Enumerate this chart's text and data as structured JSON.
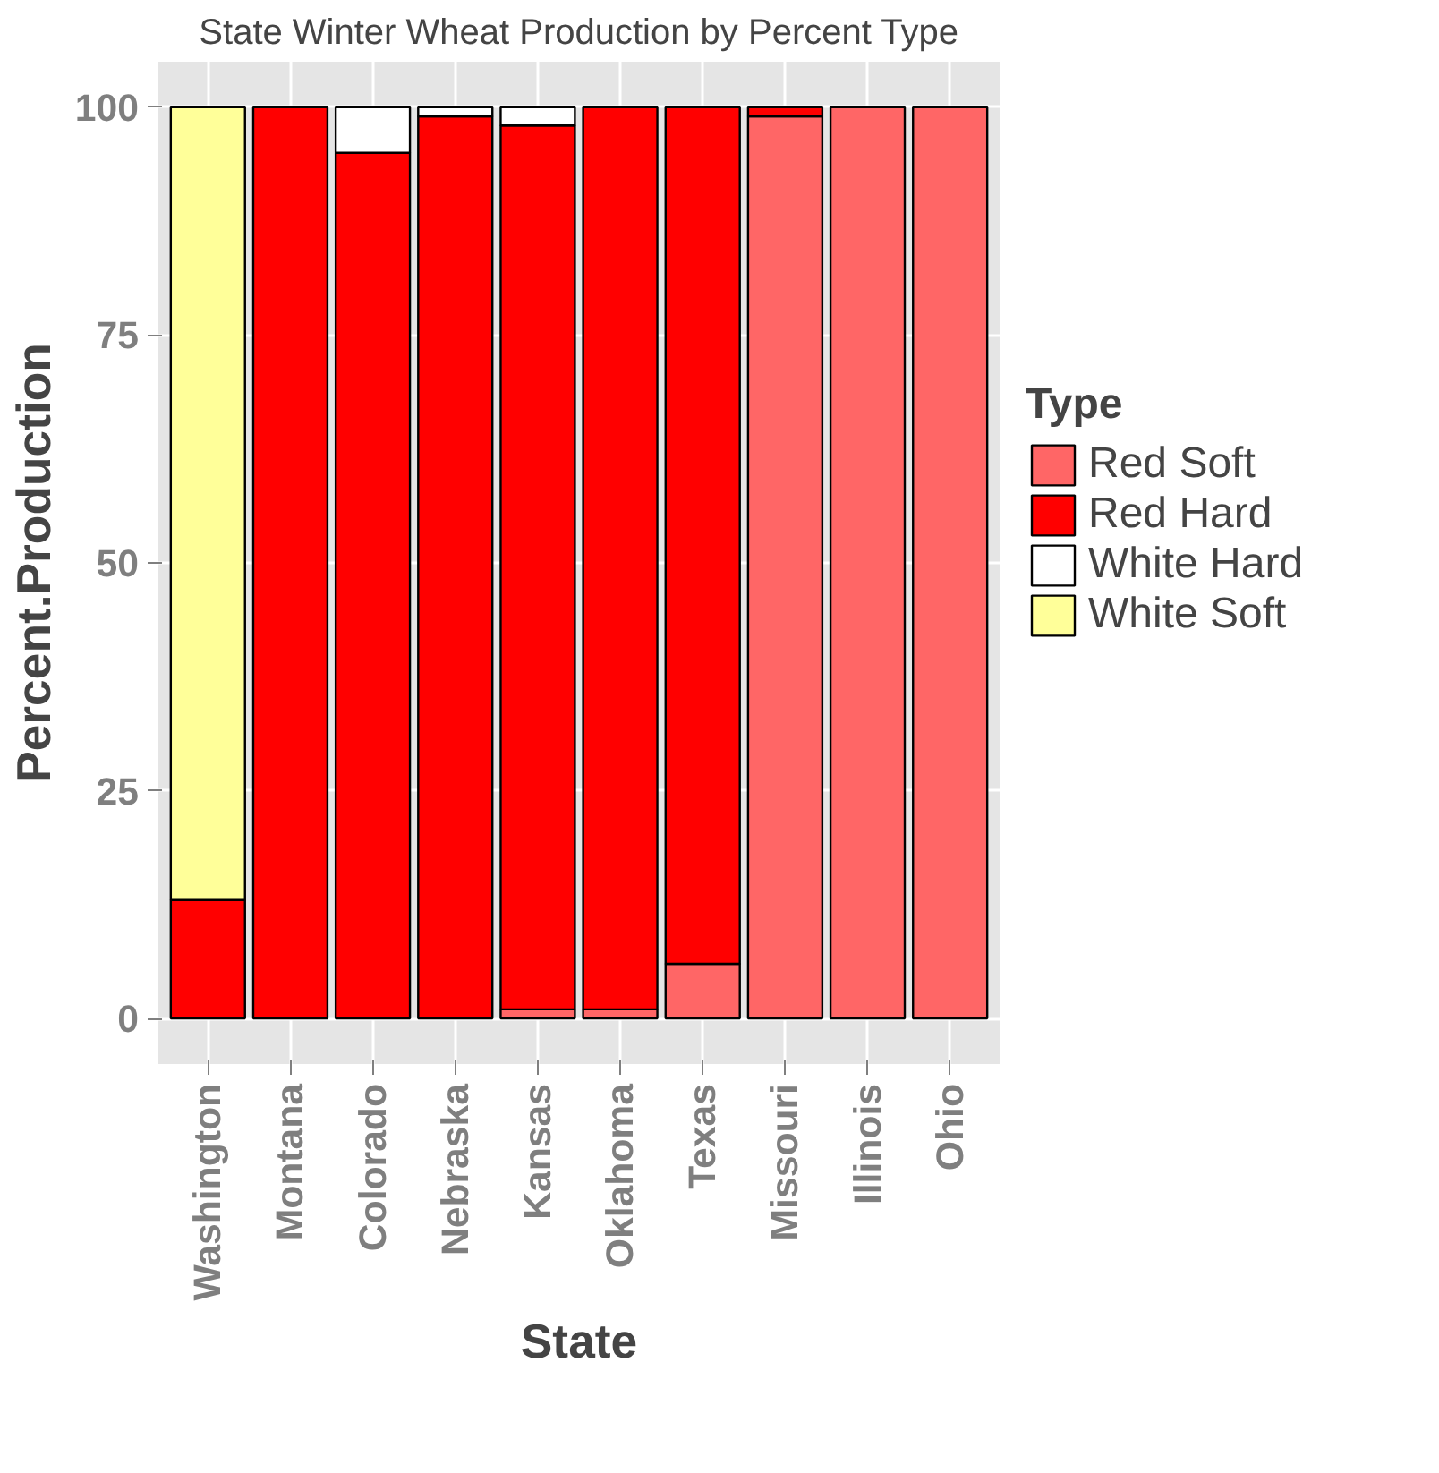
{
  "chart_data": {
    "type": "bar",
    "title": "State Winter Wheat Production by Percent Type",
    "xlabel": "State",
    "ylabel": "Percent.Production",
    "legend_title": "Type",
    "categories": [
      "Washington",
      "Montana",
      "Colorado",
      "Nebraska",
      "Kansas",
      "Oklahoma",
      "Texas",
      "Missouri",
      "Illinois",
      "Ohio"
    ],
    "stacked": true,
    "series": [
      {
        "name": "Red Soft",
        "color": "#ff6666",
        "values": [
          null,
          null,
          null,
          null,
          1,
          1,
          6,
          99,
          100,
          100
        ]
      },
      {
        "name": "Red Hard",
        "color": "#ff0000",
        "values": [
          13,
          100,
          95,
          99,
          97,
          99,
          94,
          1,
          null,
          null
        ]
      },
      {
        "name": "White Hard",
        "color": "#ffffff",
        "values": [
          null,
          null,
          5,
          1,
          2,
          null,
          null,
          null,
          null,
          null
        ]
      },
      {
        "name": "White Soft",
        "color": "#ffff99",
        "values": [
          87,
          null,
          null,
          null,
          null,
          null,
          null,
          null,
          null,
          null
        ]
      }
    ],
    "ylim": [
      -5,
      105
    ],
    "yticks": [
      0,
      25,
      50,
      75,
      100
    ],
    "grid": true,
    "legend": "right"
  }
}
